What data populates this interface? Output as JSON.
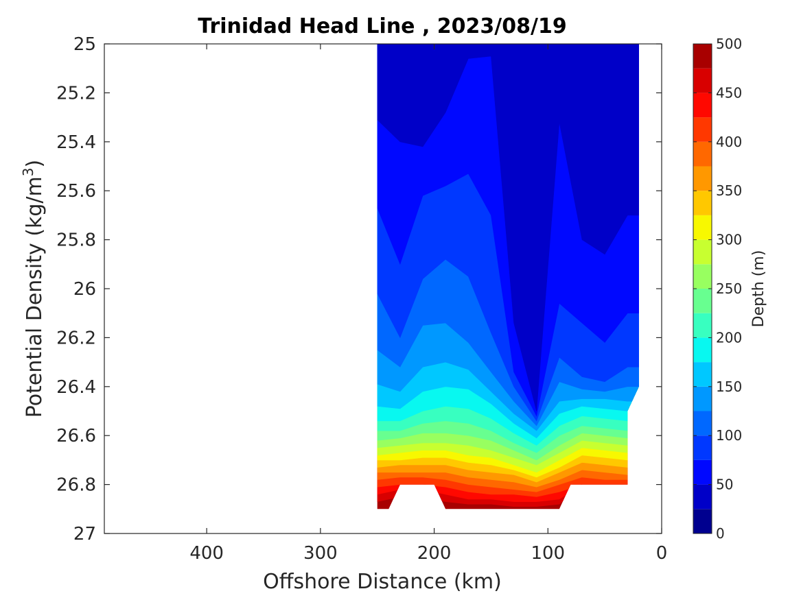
{
  "chart_data": {
    "type": "contour",
    "title": "Trinidad Head Line , 2023/08/19",
    "xlabel": "Offshore Distance (km)",
    "ylabel": "Potential Density (kg/m^3)",
    "xlim": [
      490,
      0
    ],
    "x_reversed": true,
    "ylim": [
      25,
      27
    ],
    "y_reversed": true,
    "x_ticks": [
      400,
      300,
      200,
      100,
      0
    ],
    "x_tick_labels": [
      "400",
      "300",
      "200",
      "100",
      "0"
    ],
    "y_ticks": [
      25,
      25.2,
      25.4,
      25.6,
      25.8,
      26,
      26.2,
      26.4,
      26.6,
      26.8,
      27
    ],
    "y_tick_labels": [
      "25",
      "25.2",
      "25.4",
      "25.6",
      "25.8",
      "26",
      "26.2",
      "26.4",
      "26.6",
      "26.8",
      "27"
    ],
    "colorbar": {
      "label": "Depth (m)",
      "range": [
        0,
        500
      ],
      "ticks": [
        0,
        50,
        100,
        150,
        200,
        250,
        300,
        350,
        400,
        450,
        500
      ],
      "tick_labels": [
        "0",
        "50",
        "100",
        "150",
        "200",
        "250",
        "300",
        "350",
        "400",
        "450",
        "500"
      ],
      "levels": [
        0,
        25,
        50,
        75,
        100,
        125,
        150,
        175,
        200,
        225,
        250,
        275,
        300,
        325,
        350,
        375,
        400,
        425,
        450,
        475,
        500
      ],
      "colors": [
        "#00008f",
        "#0000c8",
        "#0008ff",
        "#0038ff",
        "#0068ff",
        "#0098ff",
        "#00c8ff",
        "#08f8f0",
        "#38ffc0",
        "#68ff90",
        "#98ff60",
        "#c8ff30",
        "#f8f800",
        "#ffc800",
        "#ff9800",
        "#ff6800",
        "#ff3800",
        "#ff0800",
        "#d80000",
        "#a80000"
      ]
    },
    "station_x": [
      250,
      230,
      210,
      190,
      170,
      150,
      130,
      110,
      90,
      70,
      50,
      30
    ],
    "depth_isolines": [
      {
        "level": 25,
        "y": [
          25.0,
          25.0,
          25.0,
          25.0,
          25.0,
          25.0,
          25.0,
          25.0,
          25.0,
          25.0,
          25.0,
          25.0
        ]
      },
      {
        "level": 50,
        "y": [
          25.31,
          25.4,
          25.42,
          25.28,
          25.06,
          25.05,
          26.14,
          26.5,
          25.32,
          25.8,
          25.86,
          25.7
        ]
      },
      {
        "level": 75,
        "y": [
          25.67,
          25.9,
          25.62,
          25.58,
          25.53,
          25.7,
          26.34,
          26.52,
          26.06,
          26.14,
          26.22,
          26.1
        ]
      },
      {
        "level": 100,
        "y": [
          26.02,
          26.2,
          25.96,
          25.88,
          25.95,
          26.18,
          26.4,
          26.54,
          26.28,
          26.36,
          26.38,
          26.32
        ]
      },
      {
        "level": 125,
        "y": [
          26.25,
          26.32,
          26.15,
          26.14,
          26.22,
          26.34,
          26.46,
          26.56,
          26.38,
          26.41,
          26.42,
          26.4
        ]
      },
      {
        "level": 150,
        "y": [
          26.39,
          26.42,
          26.32,
          26.3,
          26.33,
          26.42,
          26.51,
          26.58,
          26.46,
          26.45,
          26.45,
          26.46
        ]
      },
      {
        "level": 175,
        "y": [
          26.48,
          26.49,
          26.42,
          26.4,
          26.41,
          26.47,
          26.55,
          26.61,
          26.51,
          26.48,
          26.49,
          26.5
        ]
      },
      {
        "level": 200,
        "y": [
          26.54,
          26.54,
          26.5,
          26.48,
          26.49,
          26.53,
          26.59,
          26.64,
          26.56,
          26.52,
          26.53,
          26.54
        ]
      },
      {
        "level": 225,
        "y": [
          26.58,
          26.58,
          26.55,
          26.54,
          26.55,
          26.58,
          26.63,
          26.67,
          26.6,
          26.56,
          26.57,
          26.58
        ]
      },
      {
        "level": 250,
        "y": [
          26.62,
          26.61,
          26.59,
          26.59,
          26.6,
          26.62,
          26.66,
          26.7,
          26.64,
          26.59,
          26.6,
          26.61
        ]
      },
      {
        "level": 275,
        "y": [
          26.65,
          26.64,
          26.63,
          26.63,
          26.64,
          26.66,
          26.69,
          26.72,
          26.67,
          26.62,
          26.63,
          26.64
        ]
      },
      {
        "level": 300,
        "y": [
          26.68,
          26.67,
          26.66,
          26.66,
          26.68,
          26.69,
          26.72,
          26.75,
          26.7,
          26.65,
          26.66,
          26.67
        ]
      },
      {
        "level": 325,
        "y": [
          26.7,
          26.7,
          26.69,
          26.69,
          26.71,
          26.72,
          26.74,
          26.77,
          26.73,
          26.68,
          26.69,
          26.7
        ]
      },
      {
        "level": 350,
        "y": [
          26.73,
          26.72,
          26.72,
          26.72,
          26.74,
          26.75,
          26.76,
          26.79,
          26.75,
          26.71,
          26.72,
          26.73
        ]
      },
      {
        "level": 375,
        "y": [
          26.75,
          26.75,
          26.75,
          26.75,
          26.77,
          26.78,
          26.79,
          26.81,
          26.78,
          26.74,
          26.75,
          26.76
        ]
      },
      {
        "level": 400,
        "y": [
          26.78,
          26.77,
          26.77,
          26.78,
          26.8,
          26.81,
          26.82,
          26.83,
          26.8,
          26.77,
          26.78,
          26.78
        ]
      },
      {
        "level": 425,
        "y": [
          26.81,
          26.8,
          26.8,
          26.81,
          26.83,
          26.84,
          26.84,
          26.85,
          26.83,
          26.8,
          26.8,
          26.8
        ]
      },
      {
        "level": 450,
        "y": [
          26.84,
          26.82,
          26.82,
          26.84,
          26.86,
          26.86,
          26.87,
          26.87,
          26.86,
          26.8,
          26.8,
          26.8
        ]
      },
      {
        "level": 475,
        "y": [
          26.87,
          26.85,
          26.85,
          26.87,
          26.88,
          26.88,
          26.89,
          26.89,
          26.88,
          26.8,
          26.8,
          26.8
        ]
      }
    ],
    "section_outline": [
      [
        250,
        25.0
      ],
      [
        20,
        25.0
      ],
      [
        20,
        26.4
      ],
      [
        30,
        26.5
      ],
      [
        30,
        26.8
      ],
      [
        80,
        26.8
      ],
      [
        90,
        26.9
      ],
      [
        190,
        26.9
      ],
      [
        200,
        26.8
      ],
      [
        230,
        26.8
      ],
      [
        240,
        26.9
      ],
      [
        250,
        26.9
      ]
    ]
  }
}
